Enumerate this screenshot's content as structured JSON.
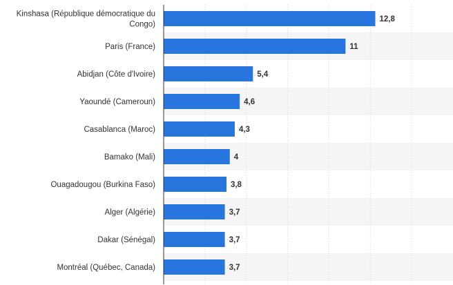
{
  "chart_data": {
    "type": "bar",
    "orientation": "horizontal",
    "categories": [
      [
        "Kinshasa (République démocratique du",
        "Congo)"
      ],
      [
        "Paris (France)"
      ],
      [
        "Abidjan (Côte d'Ivoire)"
      ],
      [
        "Yaoundé (Cameroun)"
      ],
      [
        "Casablanca (Maroc)"
      ],
      [
        "Bamako (Mali)"
      ],
      [
        "Ouagadougou (Burkina Faso)"
      ],
      [
        "Alger (Algérie)"
      ],
      [
        "Dakar (Sénégal)"
      ],
      [
        "Montréal (Québec, Canada)"
      ]
    ],
    "values": [
      12.8,
      11,
      5.4,
      4.6,
      4.3,
      4,
      3.8,
      3.7,
      3.7,
      3.7
    ],
    "value_labels": [
      "12,8",
      "11",
      "5,4",
      "4,6",
      "4,3",
      "4",
      "3,8",
      "3,7",
      "3,7",
      "3,7"
    ],
    "xlim": [
      0,
      17.5
    ],
    "grid": true,
    "legend": "none",
    "colors": {
      "bar": "#2876dd",
      "band": "#f5f5f5",
      "grid": "#d6d6d6",
      "axis": "#333333"
    }
  }
}
